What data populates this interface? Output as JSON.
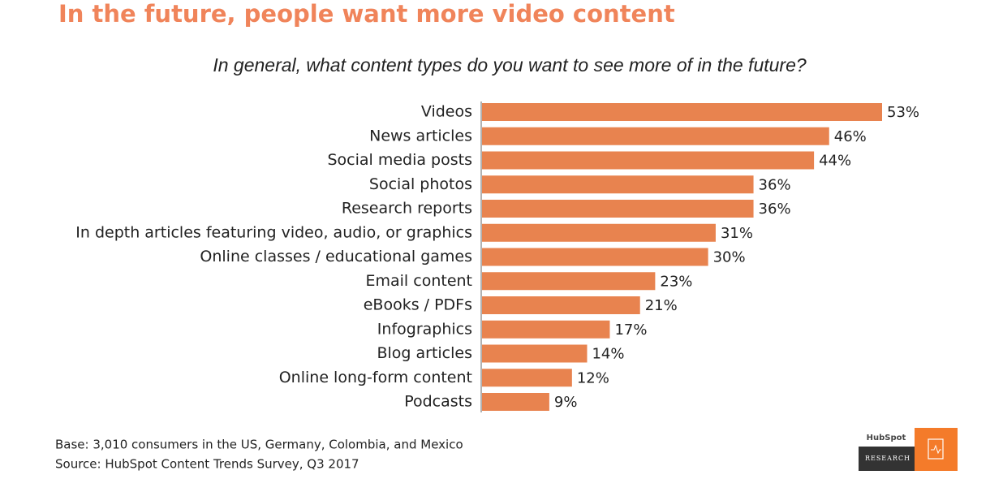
{
  "chart_data": {
    "type": "bar",
    "orientation": "horizontal",
    "title": "In the future, people want more video content",
    "subtitle": "In general, what content types do you want to see more of in the future?",
    "categories": [
      "Videos",
      "News articles",
      "Social media posts",
      "Social photos",
      "Research reports",
      "In depth articles featuring video, audio, or graphics",
      "Online classes / educational games",
      "Email content",
      "eBooks / PDFs",
      "Infographics",
      "Blog articles",
      "Online long-form content",
      "Podcasts"
    ],
    "values": [
      53,
      46,
      44,
      36,
      36,
      31,
      30,
      23,
      21,
      17,
      14,
      12,
      9
    ],
    "value_labels": [
      "53%",
      "46%",
      "44%",
      "36%",
      "36%",
      "31%",
      "30%",
      "23%",
      "21%",
      "17%",
      "14%",
      "12%",
      "9%"
    ],
    "color": "#e8834f",
    "notes": [
      "Base: 3,010 consumers in the US, Germany, Colombia, and Mexico",
      "Source: HubSpot Content Trends Survey, Q3 2017"
    ]
  },
  "logo": {
    "brand": "HubSpot",
    "label": "RESEARCH"
  }
}
